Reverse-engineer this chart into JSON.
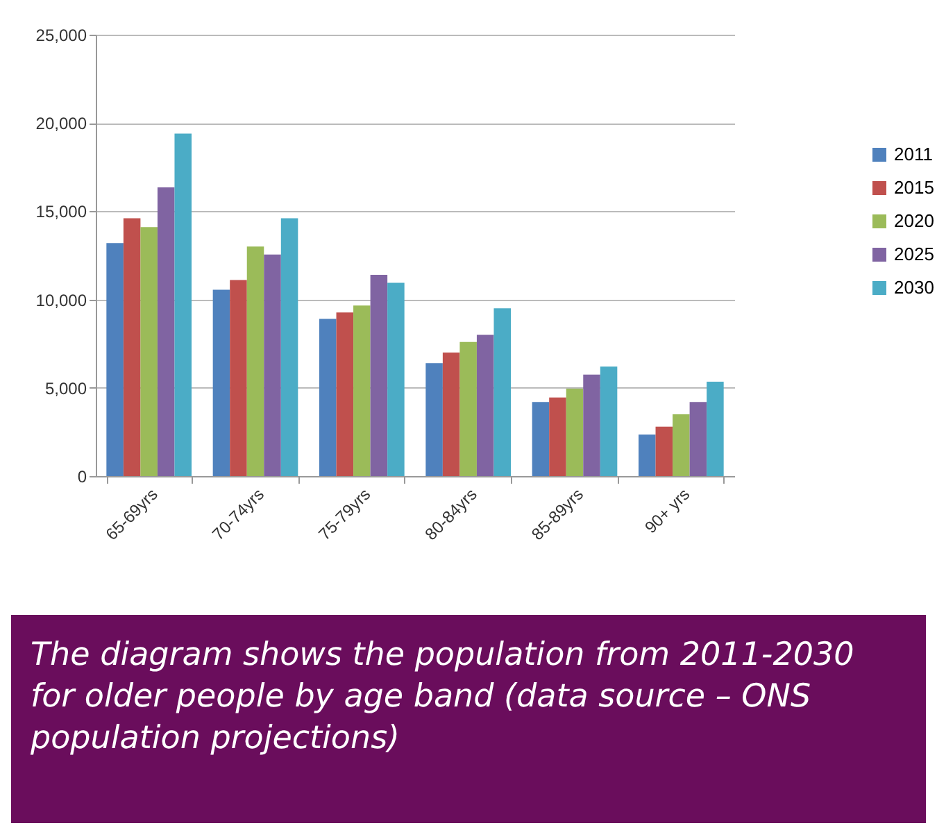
{
  "chart_data": {
    "type": "bar",
    "categories": [
      "65-69yrs",
      "70-74yrs",
      "75-79yrs",
      "80-84yrs",
      "85-89yrs",
      "90+ yrs"
    ],
    "series": [
      {
        "name": "2011",
        "color": "#4f81bd",
        "values": [
          13200,
          10550,
          8900,
          6400,
          4200,
          2350
        ]
      },
      {
        "name": "2015",
        "color": "#c0504d",
        "values": [
          14600,
          11100,
          9270,
          7000,
          4450,
          2800
        ]
      },
      {
        "name": "2020",
        "color": "#9bbb59",
        "values": [
          14100,
          13000,
          9660,
          7600,
          4950,
          3500
        ]
      },
      {
        "name": "2025",
        "color": "#8064a2",
        "values": [
          16350,
          12550,
          11400,
          8000,
          5750,
          4200
        ]
      },
      {
        "name": "2030",
        "color": "#4bacc6",
        "values": [
          19400,
          14600,
          10950,
          9500,
          6200,
          5350
        ]
      }
    ],
    "ylim": [
      0,
      25000
    ],
    "yticks": [
      0,
      {
        "value": 5000,
        "label": "5,000"
      },
      {
        "value": 10000,
        "label": "10,000"
      },
      {
        "value": 15000,
        "label": "15,000"
      },
      {
        "value": 20000,
        "label": "20,000"
      },
      {
        "value": 25000,
        "label": "25,000"
      }
    ],
    "grid": "y",
    "legend": "right",
    "annotations": [
      "The diagram shows the population from 2011-2030  for older people by age band (data source – ONS population projections)"
    ]
  }
}
